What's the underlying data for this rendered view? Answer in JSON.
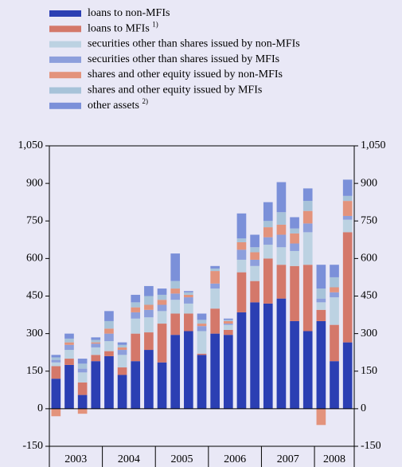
{
  "chart_data": {
    "type": "stacked_bar",
    "categories": [
      null,
      null,
      null,
      null,
      null,
      null,
      null,
      null,
      null,
      null,
      null,
      null,
      null,
      null,
      null,
      null,
      null,
      null,
      null,
      null,
      null,
      null,
      null
    ],
    "x_groups": [
      {
        "label": "2003",
        "count": 4
      },
      {
        "label": "2004",
        "count": 4
      },
      {
        "label": "2005",
        "count": 4
      },
      {
        "label": "2006",
        "count": 4
      },
      {
        "label": "2007",
        "count": 4
      },
      {
        "label": "2008",
        "count": 3
      }
    ],
    "ylim": [
      -150,
      1050
    ],
    "yticks": [
      {
        "value": -150,
        "label": "-150"
      },
      0,
      150,
      300,
      450,
      600,
      750,
      900,
      {
        "value": 1050,
        "label": "1,050"
      }
    ],
    "y2lim": [
      -150,
      1050
    ],
    "y2ticks": [
      {
        "value": -150,
        "label": "-150"
      },
      0,
      150,
      300,
      450,
      600,
      750,
      900,
      {
        "value": 1050,
        "label": "1,050"
      }
    ],
    "series": [
      {
        "name": "loans to non-MFIs",
        "color": "#2b3fb3",
        "values": [
          120,
          175,
          55,
          190,
          210,
          135,
          190,
          235,
          185,
          295,
          310,
          215,
          300,
          295,
          385,
          425,
          420,
          440,
          350,
          310,
          350,
          190,
          265
        ]
      },
      {
        "name": "loans to MFIs",
        "note": "1)",
        "color": "#d4786a",
        "values": [
          50,
          25,
          50,
          25,
          20,
          30,
          110,
          70,
          155,
          85,
          70,
          5,
          100,
          20,
          160,
          85,
          180,
          135,
          220,
          265,
          45,
          145,
          440
        ]
      },
      {
        "name": "securities other than shares issued by non-MFIs",
        "color": "#bcd2e2",
        "values": [
          15,
          35,
          40,
          30,
          40,
          50,
          60,
          60,
          50,
          55,
          40,
          90,
          80,
          20,
          50,
          60,
          55,
          70,
          60,
          130,
          30,
          110,
          50
        ]
      },
      {
        "name": "securities other than shares issued by MFIs",
        "color": "#8d9fdc",
        "values": [
          10,
          20,
          15,
          15,
          30,
          20,
          25,
          30,
          25,
          25,
          25,
          20,
          20,
          5,
          40,
          25,
          30,
          50,
          30,
          35,
          15,
          20,
          15
        ]
      },
      {
        "name": "shares and other equity issued by non-MFIs",
        "color": "#e3937c",
        "values": [
          -30,
          10,
          -20,
          5,
          20,
          10,
          20,
          20,
          20,
          20,
          10,
          10,
          50,
          10,
          30,
          30,
          40,
          40,
          40,
          50,
          -65,
          20,
          60
        ]
      },
      {
        "name": "shares and other equity issued by MFIs",
        "color": "#a7c3d9",
        "values": [
          10,
          15,
          20,
          10,
          30,
          10,
          20,
          35,
          20,
          30,
          10,
          15,
          10,
          5,
          15,
          20,
          25,
          50,
          20,
          40,
          40,
          40,
          20
        ]
      },
      {
        "name": "other assets",
        "note": "2)",
        "color": "#7b90d9",
        "values": [
          10,
          20,
          20,
          10,
          40,
          10,
          30,
          40,
          25,
          110,
          5,
          25,
          10,
          5,
          100,
          50,
          75,
          120,
          45,
          50,
          95,
          50,
          65
        ]
      }
    ]
  }
}
